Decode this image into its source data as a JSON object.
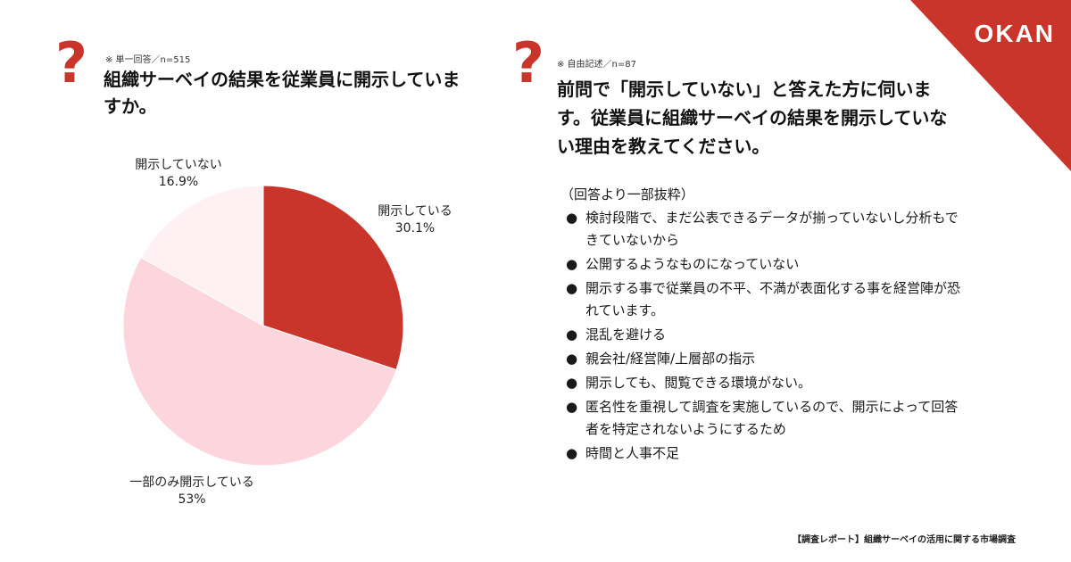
{
  "brand": {
    "logo": "OKAN",
    "accent": "#c9342b"
  },
  "left": {
    "icon": "question-mark-icon",
    "note": "※ 単一回答／n=515",
    "question": "組織サーベイの結果を従業員に開示していますか。"
  },
  "right": {
    "icon": "question-mark-icon",
    "note": "※ 自由記述／n=87",
    "question": "前問で「開示していない」と答えた方に伺います。従業員に組織サーベイの結果を開示していない理由を教えてください。",
    "answers_heading": "（回答より一部抜粋）",
    "answers": [
      "検討段階で、まだ公表できるデータが揃っていないし分析もできていないから",
      "公開するようなものになっていない",
      "開示する事で従業員の不平、不満が表面化する事を経営陣が恐れています。",
      "混乱を避ける",
      "親会社/経営陣/上層部の指示",
      "開示しても、閲覧できる環境がない。",
      "匿名性を重視して調査を実施しているので、開示によって回答者を特定されないようにするため",
      "時間と人事不足"
    ]
  },
  "chart_data": {
    "type": "pie",
    "slices": [
      {
        "label": "開示している",
        "value": 30.1,
        "display": "30.1%",
        "color": "#c9342b"
      },
      {
        "label": "一部のみ開示している",
        "value": 53,
        "display": "53%",
        "color": "#fcd6dc"
      },
      {
        "label": "開示していない",
        "value": 16.9,
        "display": "16.9%",
        "color": "#fff0f4"
      }
    ]
  },
  "footer": "【調査レポート】組織サーベイの活用に関する市場調査"
}
